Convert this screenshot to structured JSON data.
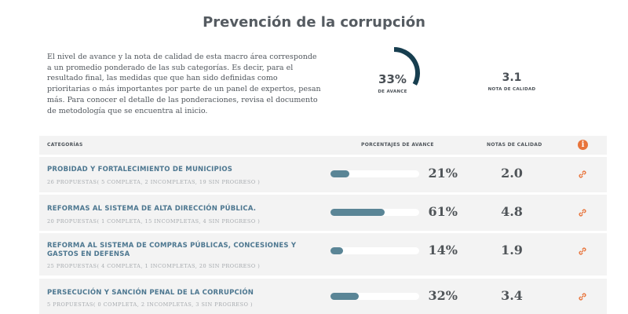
{
  "page": {
    "title": "Prevención de la corrupción",
    "intro": "El nivel de avance y la nota de calidad de esta macro área corresponde a un promedio ponderado de las sub categorías. Es decir, para el resultado final, las medidas que que han sido definidas como prioritarias o más importantes por parte de un panel de expertos, pesan más. Para conocer el detalle de las ponderaciones, revisa el documento de metodología que se encuentra al inicio."
  },
  "summary": {
    "avance_value": "33%",
    "avance_fraction": 0.33,
    "avance_label": "DE AVANCE",
    "nota_value": "3.1",
    "nota_label": "NOTA DE CALIDAD"
  },
  "table": {
    "headers": {
      "categorias": "CATEGORÍAS",
      "porcentajes": "PORCENTAJES DE AVANCE",
      "notas": "NOTAS DE CALIDAD"
    },
    "info_icon": "info-icon",
    "rows": [
      {
        "name": "PROBIDAD Y FORTALECIMIENTO DE MUNICIPIOS",
        "sub": "26 PROPUESTAS( 5 COMPLETA, 2 INCOMPLETAS, 19 SIN PROGRESO )",
        "pct": "21%",
        "progress": 0.21,
        "nota": "2.0",
        "icon": "link-icon"
      },
      {
        "name": "REFORMAS AL SISTEMA DE ALTA DIRECCIÓN PÚBLICA.",
        "sub": "20 PROPUESTAS( 1 COMPLETA, 15 INCOMPLETAS, 4 SIN PROGRESO )",
        "pct": "61%",
        "progress": 0.61,
        "nota": "4.8",
        "icon": "link-icon"
      },
      {
        "name": "REFORMA AL SISTEMA DE COMPRAS PÚBLICAS, CONCESIONES Y GASTOS EN DEFENSA",
        "sub": "25 PROPUESTAS( 4 COMPLETA, 1 INCOMPLETAS, 20 SIN PROGRESO )",
        "pct": "14%",
        "progress": 0.14,
        "nota": "1.9",
        "icon": "link-icon"
      },
      {
        "name": "PERSECUCIÓN Y SANCIÓN PENAL DE LA CORRUPCIÓN",
        "sub": "5 PROPUESTAS( 0 COMPLETA, 2 INCOMPLETAS, 3 SIN PROGRESO )",
        "pct": "32%",
        "progress": 0.32,
        "nota": "3.4",
        "icon": "link-icon"
      }
    ]
  },
  "colors": {
    "ring": "#173e4f",
    "bar": "#5a8596",
    "accent": "#e8743b",
    "category_text": "#4d7790"
  }
}
